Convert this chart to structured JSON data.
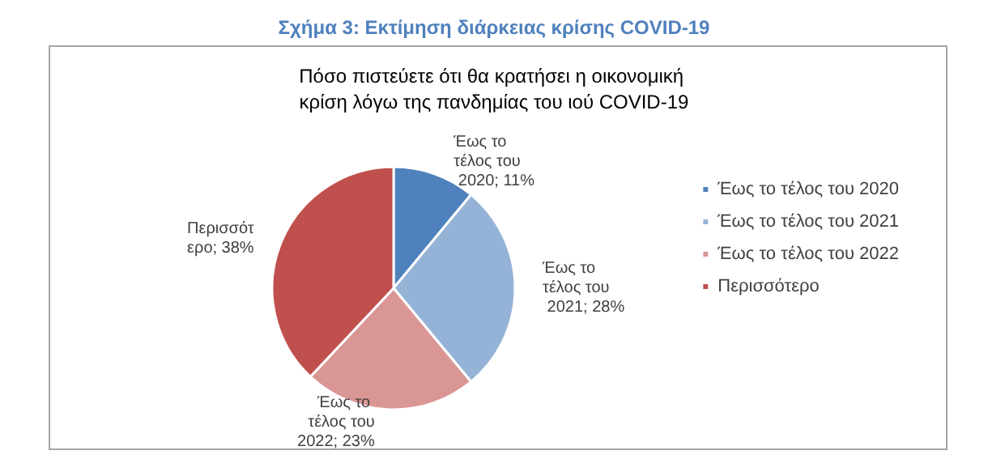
{
  "chart_data": {
    "type": "pie",
    "title": "Σχήμα 3: Εκτίμηση διάρκειας κρίσης COVID-19",
    "subtitle": "Πόσο πιστεύετε ότι θα κρατήσει η οικονομική κρίση λόγω της πανδημίας του ιού COVID-19",
    "categories": [
      "Έως το τέλος του 2020",
      "Έως το τέλος του 2021",
      "Έως το τέλος του 2022",
      "Περισσότερο"
    ],
    "values": [
      11,
      28,
      23,
      38
    ],
    "colors": [
      "#4f81bd",
      "#95b3d7",
      "#da9694",
      "#c0504d"
    ],
    "value_labels": [
      "Έως το τέλος του 2020; 11%",
      "Έως το τέλος του 2021; 28%",
      "Έως το τέλος του 2022; 23%",
      "Περισσότερο; 38%"
    ],
    "legend": "right"
  }
}
